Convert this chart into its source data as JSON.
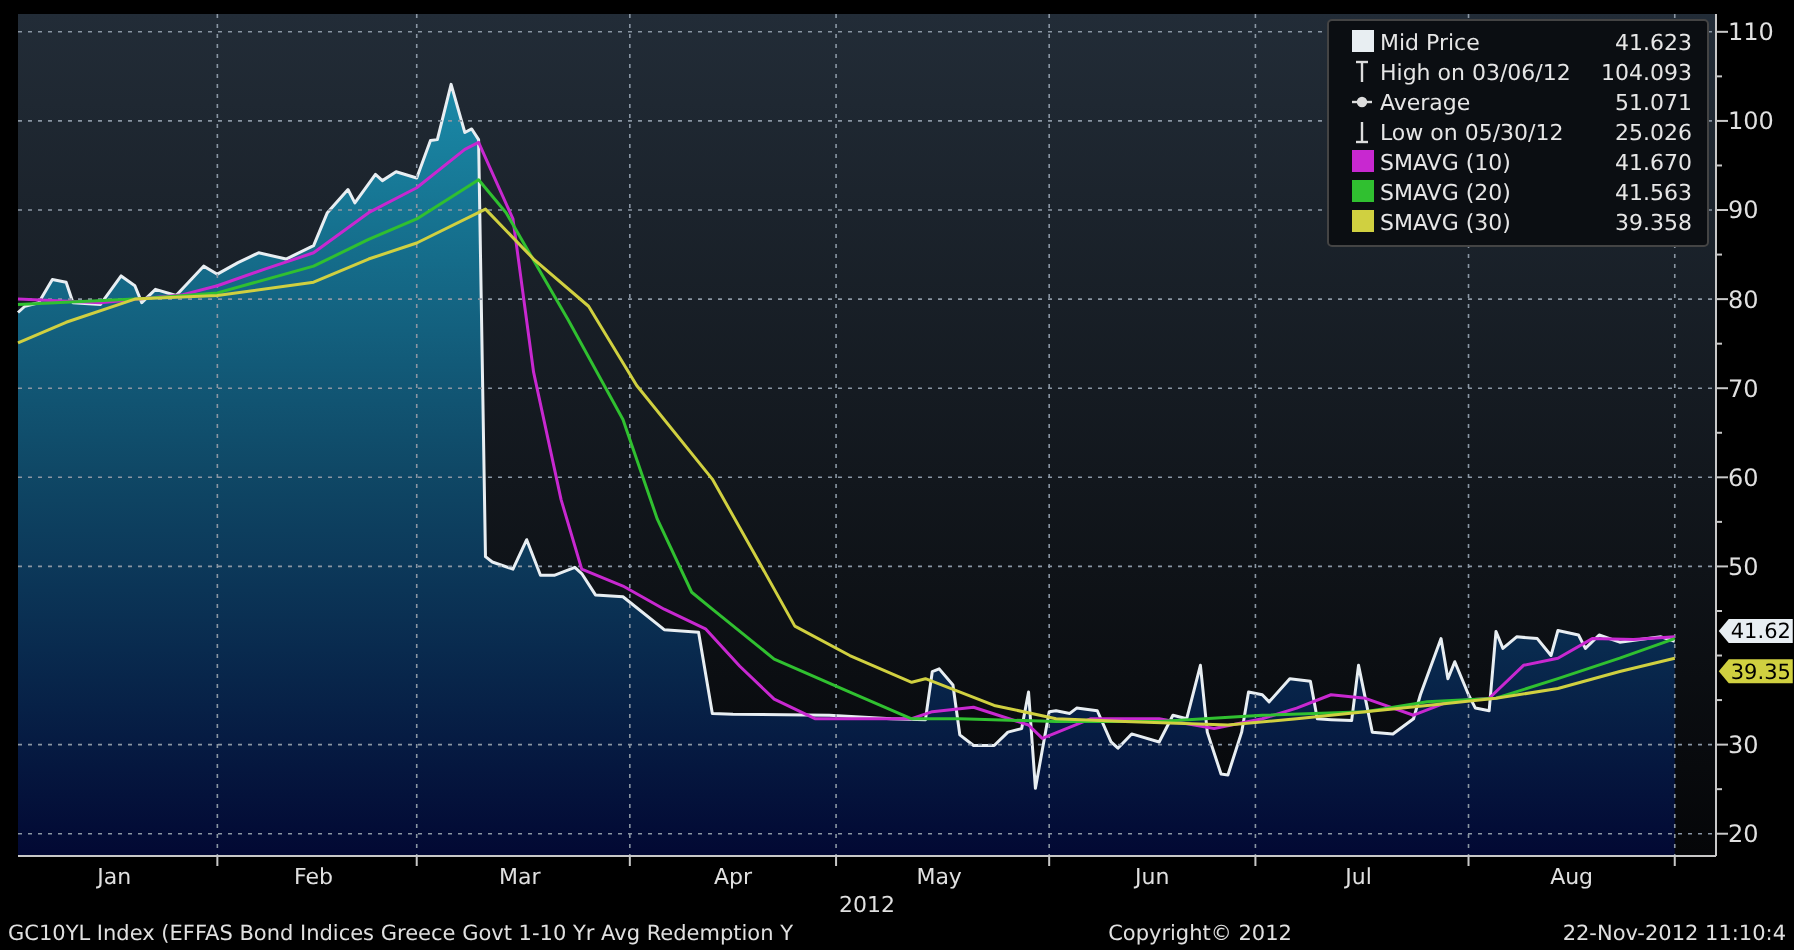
{
  "chart_data": {
    "type": "line",
    "xlabel": "2012",
    "x": [
      "2012-01-03",
      "2012-01-04",
      "2012-01-06",
      "2012-01-08",
      "2012-01-10",
      "2012-01-11",
      "2012-01-15",
      "2012-01-18",
      "2012-01-20",
      "2012-01-21",
      "2012-01-23",
      "2012-01-26",
      "2012-01-30",
      "2012-02-01",
      "2012-02-04",
      "2012-02-07",
      "2012-02-11",
      "2012-02-15",
      "2012-02-17",
      "2012-02-20",
      "2012-02-21",
      "2012-02-24",
      "2012-02-25",
      "2012-02-27",
      "2012-03-01",
      "2012-03-03",
      "2012-03-04",
      "2012-03-06",
      "2012-03-08",
      "2012-03-09",
      "2012-03-10",
      "2012-03-11",
      "2012-03-12",
      "2012-03-15",
      "2012-03-17",
      "2012-03-19",
      "2012-03-21",
      "2012-03-24",
      "2012-03-25",
      "2012-03-27",
      "2012-03-31",
      "2012-04-06",
      "2012-04-11",
      "2012-04-13",
      "2012-04-16",
      "2012-04-30",
      "2012-05-09",
      "2012-05-14",
      "2012-05-15",
      "2012-05-16",
      "2012-05-18",
      "2012-05-19",
      "2012-05-21",
      "2012-05-24",
      "2012-05-26",
      "2012-05-28",
      "2012-05-29",
      "2012-05-30",
      "2012-06-01",
      "2012-06-02",
      "2012-06-04",
      "2012-06-05",
      "2012-06-08",
      "2012-06-10",
      "2012-06-11",
      "2012-06-13",
      "2012-06-17",
      "2012-06-19",
      "2012-06-21",
      "2012-06-23",
      "2012-06-24",
      "2012-06-26",
      "2012-06-27",
      "2012-06-29",
      "2012-06-30",
      "2012-07-02",
      "2012-07-03",
      "2012-07-06",
      "2012-07-09",
      "2012-07-10",
      "2012-07-12",
      "2012-07-15",
      "2012-07-16",
      "2012-07-18",
      "2012-07-21",
      "2012-07-24",
      "2012-07-25",
      "2012-07-28",
      "2012-07-29",
      "2012-07-30",
      "2012-08-01",
      "2012-08-02",
      "2012-08-04",
      "2012-08-05",
      "2012-08-06",
      "2012-08-08",
      "2012-08-11",
      "2012-08-13",
      "2012-08-14",
      "2012-08-17",
      "2012-08-18",
      "2012-08-20",
      "2012-08-23",
      "2012-08-27",
      "2012-08-29",
      "2012-08-31"
    ],
    "series": [
      {
        "name": "Mid Price",
        "type": "area",
        "color": "#e8eef2",
        "values": [
          78.5,
          79.2,
          79.6,
          82.2,
          81.9,
          79.6,
          79.4,
          82.6,
          81.5,
          79.6,
          81.1,
          80.4,
          83.7,
          82.8,
          84.1,
          85.2,
          84.5,
          86.0,
          89.7,
          92.3,
          90.8,
          94.0,
          93.3,
          94.3,
          93.6,
          97.8,
          97.9,
          104.1,
          98.7,
          99.1,
          97.9,
          51.1,
          50.5,
          49.7,
          53.0,
          49.0,
          49.0,
          49.9,
          49.2,
          46.8,
          46.6,
          42.9,
          42.6,
          33.5,
          33.4,
          33.3,
          32.9,
          32.8,
          38.2,
          38.5,
          36.7,
          31.1,
          29.9,
          29.9,
          31.4,
          31.8,
          35.9,
          25.1,
          33.7,
          33.8,
          33.5,
          34.1,
          33.8,
          30.3,
          29.6,
          31.2,
          30.3,
          33.3,
          32.9,
          38.9,
          31.4,
          26.7,
          26.6,
          31.4,
          35.9,
          35.6,
          34.8,
          37.4,
          37.1,
          32.9,
          32.8,
          32.7,
          38.9,
          31.4,
          31.2,
          32.9,
          35.6,
          41.9,
          37.4,
          39.3,
          35.6,
          34.1,
          33.8,
          42.7,
          40.8,
          42.1,
          41.9,
          40.0,
          42.8,
          42.3,
          40.8,
          42.3,
          41.5,
          41.9,
          42.1,
          41.6
        ]
      },
      {
        "name": "SMAVG (10)",
        "color": "#c828d0",
        "x": [
          "2012-01-03",
          "2012-01-15",
          "2012-01-27",
          "2012-02-01",
          "2012-02-08",
          "2012-02-15",
          "2012-02-23",
          "2012-03-01",
          "2012-03-08",
          "2012-03-10",
          "2012-03-15",
          "2012-03-18",
          "2012-03-22",
          "2012-03-25",
          "2012-03-31",
          "2012-04-06",
          "2012-04-12",
          "2012-04-17",
          "2012-04-22",
          "2012-04-28",
          "2012-05-12",
          "2012-05-15",
          "2012-05-21",
          "2012-05-29",
          "2012-05-31",
          "2012-06-07",
          "2012-06-17",
          "2012-06-25",
          "2012-07-02",
          "2012-07-07",
          "2012-07-12",
          "2012-07-17",
          "2012-07-24",
          "2012-07-29",
          "2012-08-04",
          "2012-08-09",
          "2012-08-14",
          "2012-08-19",
          "2012-08-25",
          "2012-08-31"
        ],
        "values": [
          80.0,
          79.6,
          80.5,
          81.5,
          83.4,
          85.2,
          89.7,
          92.5,
          96.8,
          97.6,
          89.0,
          71.8,
          57.5,
          49.7,
          47.8,
          45.2,
          43.0,
          38.8,
          35.1,
          32.9,
          32.9,
          33.7,
          34.2,
          32.2,
          30.7,
          32.9,
          32.9,
          31.8,
          32.9,
          34.1,
          35.6,
          35.2,
          33.3,
          34.8,
          35.2,
          38.9,
          39.7,
          41.9,
          41.8,
          42.1
        ]
      },
      {
        "name": "SMAVG (20)",
        "color": "#30c030",
        "x": [
          "2012-01-03",
          "2012-01-20",
          "2012-02-01",
          "2012-02-15",
          "2012-02-23",
          "2012-03-01",
          "2012-03-10",
          "2012-03-14",
          "2012-03-23",
          "2012-03-31",
          "2012-04-05",
          "2012-04-10",
          "2012-04-13",
          "2012-04-22",
          "2012-05-03",
          "2012-05-12",
          "2012-05-19",
          "2012-06-02",
          "2012-06-17",
          "2012-07-02",
          "2012-07-17",
          "2012-07-26",
          "2012-08-05",
          "2012-08-14",
          "2012-08-23",
          "2012-08-31"
        ],
        "values": [
          79.4,
          80.0,
          80.7,
          83.7,
          86.7,
          89.0,
          93.4,
          89.7,
          77.7,
          66.5,
          55.3,
          47.1,
          45.2,
          39.6,
          35.9,
          32.9,
          32.9,
          32.6,
          32.6,
          33.3,
          33.7,
          34.8,
          35.2,
          37.4,
          39.7,
          41.9
        ]
      },
      {
        "name": "SMAVG (30)",
        "color": "#d0d040",
        "x": [
          "2012-01-03",
          "2012-01-10",
          "2012-01-20",
          "2012-02-01",
          "2012-02-15",
          "2012-02-23",
          "2012-03-01",
          "2012-03-11",
          "2012-03-18",
          "2012-03-26",
          "2012-04-02",
          "2012-04-13",
          "2012-04-19",
          "2012-04-25",
          "2012-05-03",
          "2012-05-12",
          "2012-05-14",
          "2012-05-24",
          "2012-06-02",
          "2012-06-12",
          "2012-06-27",
          "2012-07-07",
          "2012-07-17",
          "2012-07-26",
          "2012-08-05",
          "2012-08-14",
          "2012-08-23",
          "2012-08-31"
        ],
        "values": [
          75.1,
          77.4,
          80.0,
          80.4,
          81.9,
          84.5,
          86.3,
          90.1,
          84.5,
          79.2,
          70.3,
          59.8,
          51.6,
          43.3,
          40.0,
          37.0,
          37.4,
          34.4,
          32.9,
          32.6,
          32.2,
          32.9,
          33.7,
          34.4,
          35.2,
          36.3,
          38.2,
          39.7
        ]
      }
    ],
    "xlim": [
      "2012-01-03",
      "2012-09-06"
    ],
    "xticks": [
      {
        "value": "2012-01-17",
        "label": "Jan"
      },
      {
        "value": "2012-02-01",
        "label": null
      },
      {
        "value": "2012-02-15",
        "label": "Feb"
      },
      {
        "value": "2012-03-01",
        "label": null
      },
      {
        "value": "2012-03-16",
        "label": "Mar"
      },
      {
        "value": "2012-04-01",
        "label": null
      },
      {
        "value": "2012-04-16",
        "label": "Apr"
      },
      {
        "value": "2012-05-01",
        "label": null
      },
      {
        "value": "2012-05-16",
        "label": "May"
      },
      {
        "value": "2012-06-01",
        "label": null
      },
      {
        "value": "2012-06-16",
        "label": "Jun"
      },
      {
        "value": "2012-07-01",
        "label": null
      },
      {
        "value": "2012-07-16",
        "label": "Jul"
      },
      {
        "value": "2012-08-01",
        "label": null
      },
      {
        "value": "2012-08-16",
        "label": "Aug"
      },
      {
        "value": "2012-08-31",
        "label": null
      }
    ],
    "ylim": [
      17.5,
      112
    ],
    "yticks": [
      20,
      {
        "value": 25,
        "label": null
      },
      30,
      {
        "value": 35,
        "label": null
      },
      {
        "value": 40,
        "label": null
      },
      {
        "value": 45,
        "label": null
      },
      50,
      {
        "value": 55,
        "label": null
      },
      60,
      {
        "value": 65,
        "label": null
      },
      70,
      {
        "value": 75,
        "label": null
      },
      80,
      {
        "value": 85,
        "label": null
      },
      90,
      {
        "value": 95,
        "label": null
      },
      100,
      {
        "value": 105,
        "label": null
      },
      110
    ],
    "grid": true,
    "legend": "top right",
    "annotations": [
      "41.623",
      "High on 03/06/12",
      "104.093",
      "Average",
      "51.071",
      "Low on 05/30/12",
      "25.026",
      "41.670",
      "41.563",
      "39.358",
      {
        "text": "41.62",
        "x": "2012-08-31",
        "y": 41.62
      },
      {
        "text": "39.35",
        "x": "2012-08-31",
        "y": 39.35
      },
      "GC10YL Index (EFFAS Bond Indices Greece Govt 1-10 Yr Avg Redemption Y",
      "Copyright© 2012",
      "22-Nov-2012 11:10:4"
    ]
  }
}
